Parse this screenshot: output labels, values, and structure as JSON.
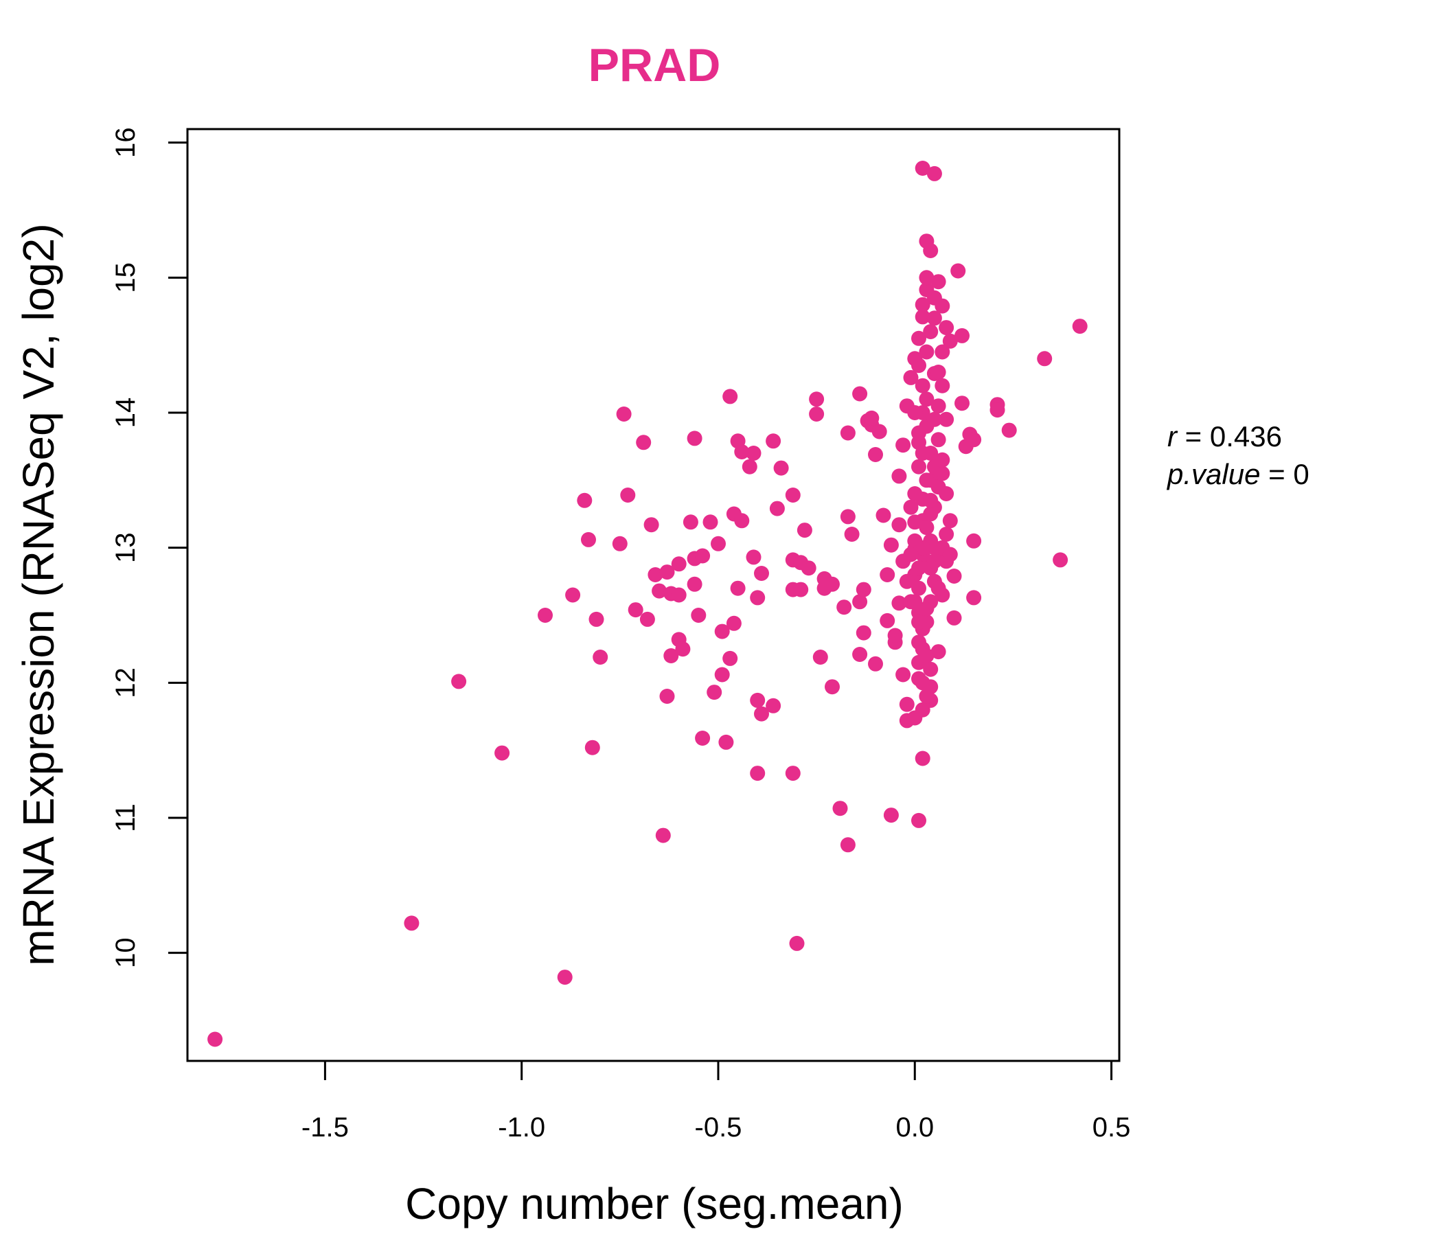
{
  "chart_data": {
    "type": "scatter",
    "title": "PRAD",
    "title_color": "#e62d8b",
    "point_color": "#e62d8b",
    "xlabel": "Copy number (seg.mean)",
    "ylabel": "mRNA Expression (RNASeq V2, log2)",
    "xlim": [
      -1.85,
      0.52
    ],
    "ylim": [
      9.2,
      16.1
    ],
    "x_ticks": [
      -1.5,
      -1.0,
      -0.5,
      0.0,
      0.5
    ],
    "x_tick_labels": [
      "-1.5",
      "-1.0",
      "-0.5",
      "0.0",
      "0.5"
    ],
    "y_ticks": [
      10,
      11,
      12,
      13,
      14,
      15,
      16
    ],
    "y_tick_labels": [
      "10",
      "11",
      "12",
      "13",
      "14",
      "15",
      "16"
    ],
    "grid": false,
    "annotations": {
      "r_label": "r",
      "r_value": "0.436",
      "p_label": "p.value",
      "p_value": "0"
    },
    "points": [
      [
        -1.78,
        9.36
      ],
      [
        -1.28,
        10.22
      ],
      [
        -0.89,
        9.82
      ],
      [
        -0.3,
        10.07
      ],
      [
        -1.16,
        12.01
      ],
      [
        -1.05,
        11.48
      ],
      [
        -0.94,
        12.5
      ],
      [
        -0.87,
        12.65
      ],
      [
        -0.84,
        13.35
      ],
      [
        -0.83,
        13.06
      ],
      [
        -0.82,
        11.52
      ],
      [
        -0.81,
        12.47
      ],
      [
        -0.8,
        12.19
      ],
      [
        -0.75,
        13.03
      ],
      [
        -0.74,
        13.99
      ],
      [
        -0.73,
        13.39
      ],
      [
        -0.71,
        12.54
      ],
      [
        -0.69,
        13.78
      ],
      [
        -0.68,
        12.47
      ],
      [
        -0.67,
        13.17
      ],
      [
        -0.66,
        12.8
      ],
      [
        -0.65,
        12.68
      ],
      [
        -0.64,
        10.87
      ],
      [
        -0.63,
        12.82
      ],
      [
        -0.63,
        11.9
      ],
      [
        -0.62,
        12.2
      ],
      [
        -0.62,
        12.66
      ],
      [
        -0.6,
        12.65
      ],
      [
        -0.6,
        12.88
      ],
      [
        -0.6,
        12.32
      ],
      [
        -0.59,
        12.25
      ],
      [
        -0.57,
        13.19
      ],
      [
        -0.56,
        13.81
      ],
      [
        -0.56,
        12.92
      ],
      [
        -0.56,
        12.73
      ],
      [
        -0.55,
        12.5
      ],
      [
        -0.54,
        12.94
      ],
      [
        -0.54,
        11.59
      ],
      [
        -0.52,
        13.19
      ],
      [
        -0.51,
        11.93
      ],
      [
        -0.5,
        13.03
      ],
      [
        -0.49,
        12.38
      ],
      [
        -0.49,
        12.06
      ],
      [
        -0.48,
        11.56
      ],
      [
        -0.47,
        12.18
      ],
      [
        -0.47,
        14.12
      ],
      [
        -0.46,
        12.44
      ],
      [
        -0.46,
        13.25
      ],
      [
        -0.45,
        13.79
      ],
      [
        -0.45,
        12.7
      ],
      [
        -0.44,
        13.71
      ],
      [
        -0.44,
        13.2
      ],
      [
        -0.42,
        13.6
      ],
      [
        -0.41,
        13.7
      ],
      [
        -0.41,
        12.93
      ],
      [
        -0.4,
        12.63
      ],
      [
        -0.4,
        11.87
      ],
      [
        -0.4,
        11.33
      ],
      [
        -0.39,
        11.77
      ],
      [
        -0.39,
        12.81
      ],
      [
        -0.36,
        13.79
      ],
      [
        -0.36,
        11.83
      ],
      [
        -0.35,
        13.29
      ],
      [
        -0.34,
        13.59
      ],
      [
        -0.31,
        11.33
      ],
      [
        -0.31,
        13.39
      ],
      [
        -0.31,
        12.91
      ],
      [
        -0.31,
        12.69
      ],
      [
        -0.29,
        12.69
      ],
      [
        -0.29,
        12.89
      ],
      [
        -0.28,
        13.13
      ],
      [
        -0.27,
        12.85
      ],
      [
        -0.25,
        13.99
      ],
      [
        -0.25,
        14.1
      ],
      [
        -0.24,
        12.19
      ],
      [
        -0.23,
        12.7
      ],
      [
        -0.23,
        12.77
      ],
      [
        -0.21,
        12.73
      ],
      [
        -0.21,
        11.97
      ],
      [
        -0.19,
        11.07
      ],
      [
        -0.18,
        12.56
      ],
      [
        -0.17,
        13.85
      ],
      [
        -0.17,
        13.23
      ],
      [
        -0.17,
        10.8
      ],
      [
        -0.16,
        13.1
      ],
      [
        -0.14,
        12.21
      ],
      [
        -0.14,
        12.6
      ],
      [
        -0.14,
        14.14
      ],
      [
        -0.13,
        12.69
      ],
      [
        -0.13,
        12.37
      ],
      [
        -0.12,
        13.94
      ],
      [
        -0.11,
        13.91
      ],
      [
        -0.11,
        13.96
      ],
      [
        -0.1,
        13.69
      ],
      [
        -0.1,
        12.14
      ],
      [
        -0.09,
        13.86
      ],
      [
        -0.08,
        13.24
      ],
      [
        -0.07,
        12.46
      ],
      [
        -0.07,
        12.8
      ],
      [
        -0.06,
        11.02
      ],
      [
        -0.06,
        13.02
      ],
      [
        -0.05,
        12.3
      ],
      [
        -0.05,
        12.35
      ],
      [
        -0.04,
        12.59
      ],
      [
        -0.04,
        13.17
      ],
      [
        -0.04,
        13.53
      ],
      [
        -0.03,
        13.76
      ],
      [
        -0.03,
        12.06
      ],
      [
        -0.03,
        12.9
      ],
      [
        -0.02,
        11.84
      ],
      [
        -0.02,
        11.72
      ],
      [
        -0.02,
        14.05
      ],
      [
        -0.01,
        14.26
      ],
      [
        -0.01,
        12.6
      ],
      [
        0.0,
        13.19
      ],
      [
        0.0,
        11.74
      ],
      [
        0.0,
        12.99
      ],
      [
        0.01,
        10.98
      ],
      [
        0.01,
        12.03
      ],
      [
        0.01,
        12.52
      ],
      [
        0.01,
        13.78
      ],
      [
        0.02,
        11.44
      ],
      [
        0.02,
        11.8
      ],
      [
        0.02,
        13.36
      ],
      [
        0.02,
        14.71
      ],
      [
        0.02,
        15.81
      ],
      [
        0.03,
        15.27
      ],
      [
        0.03,
        14.91
      ],
      [
        0.03,
        14.45
      ],
      [
        0.03,
        12.45
      ],
      [
        0.04,
        15.2
      ],
      [
        0.04,
        13.05
      ],
      [
        0.04,
        11.97
      ],
      [
        0.04,
        11.87
      ],
      [
        0.05,
        15.77
      ],
      [
        0.05,
        14.85
      ],
      [
        0.05,
        14.29
      ],
      [
        0.05,
        13.0
      ],
      [
        0.06,
        14.97
      ],
      [
        0.06,
        12.23
      ],
      [
        0.07,
        14.79
      ],
      [
        0.07,
        14.45
      ],
      [
        0.08,
        14.63
      ],
      [
        0.09,
        14.53
      ],
      [
        0.1,
        12.48
      ],
      [
        0.1,
        12.79
      ],
      [
        0.11,
        15.05
      ],
      [
        0.12,
        14.57
      ],
      [
        0.12,
        14.07
      ],
      [
        0.13,
        13.75
      ],
      [
        0.14,
        13.84
      ],
      [
        0.15,
        13.8
      ],
      [
        0.15,
        13.05
      ],
      [
        0.15,
        12.63
      ],
      [
        0.21,
        14.06
      ],
      [
        0.21,
        14.02
      ],
      [
        0.24,
        13.87
      ],
      [
        0.33,
        14.4
      ],
      [
        0.37,
        12.91
      ],
      [
        0.42,
        14.64
      ],
      [
        0.0,
        13.4
      ],
      [
        0.01,
        13.6
      ],
      [
        0.02,
        13.2
      ],
      [
        0.0,
        12.8
      ],
      [
        0.01,
        12.7
      ],
      [
        0.03,
        13.9
      ],
      [
        0.02,
        14.0
      ],
      [
        0.04,
        13.5
      ],
      [
        0.05,
        13.3
      ],
      [
        0.03,
        12.9
      ],
      [
        0.02,
        12.4
      ],
      [
        0.01,
        12.3
      ],
      [
        0.04,
        13.7
      ],
      [
        0.06,
        13.8
      ],
      [
        0.05,
        13.6
      ],
      [
        0.02,
        14.2
      ],
      [
        0.03,
        14.1
      ],
      [
        0.01,
        14.35
      ],
      [
        0.06,
        14.3
      ],
      [
        0.07,
        14.2
      ],
      [
        0.0,
        13.05
      ],
      [
        0.02,
        12.95
      ],
      [
        0.04,
        12.85
      ],
      [
        0.05,
        12.75
      ],
      [
        0.07,
        12.65
      ],
      [
        0.03,
        12.55
      ],
      [
        0.01,
        12.15
      ],
      [
        0.02,
        12.0
      ],
      [
        0.03,
        11.9
      ],
      [
        0.08,
        13.95
      ],
      [
        0.08,
        13.1
      ],
      [
        0.09,
        13.2
      ],
      [
        0.06,
        13.45
      ],
      [
        0.07,
        13.55
      ],
      [
        0.04,
        14.6
      ],
      [
        0.02,
        14.8
      ],
      [
        0.03,
        15.0
      ],
      [
        0.01,
        14.55
      ],
      [
        0.05,
        14.7
      ],
      [
        0.0,
        14.4
      ],
      [
        0.02,
        13.0
      ],
      [
        0.03,
        13.15
      ],
      [
        0.04,
        13.25
      ],
      [
        0.01,
        12.85
      ],
      [
        0.0,
        12.6
      ],
      [
        0.05,
        12.9
      ],
      [
        0.06,
        12.7
      ],
      [
        0.06,
        12.95
      ],
      [
        0.07,
        13.0
      ],
      [
        0.08,
        12.9
      ],
      [
        0.09,
        12.95
      ],
      [
        0.04,
        12.6
      ],
      [
        -0.01,
        13.3
      ],
      [
        -0.01,
        12.95
      ],
      [
        -0.02,
        12.75
      ],
      [
        0.0,
        14.0
      ],
      [
        0.01,
        13.85
      ],
      [
        0.02,
        13.7
      ],
      [
        0.03,
        13.5
      ],
      [
        0.04,
        13.35
      ],
      [
        0.05,
        13.95
      ],
      [
        0.06,
        14.05
      ],
      [
        0.07,
        13.65
      ],
      [
        0.08,
        13.4
      ],
      [
        0.02,
        12.25
      ],
      [
        0.01,
        12.45
      ],
      [
        0.03,
        12.2
      ],
      [
        0.04,
        12.1
      ]
    ]
  }
}
